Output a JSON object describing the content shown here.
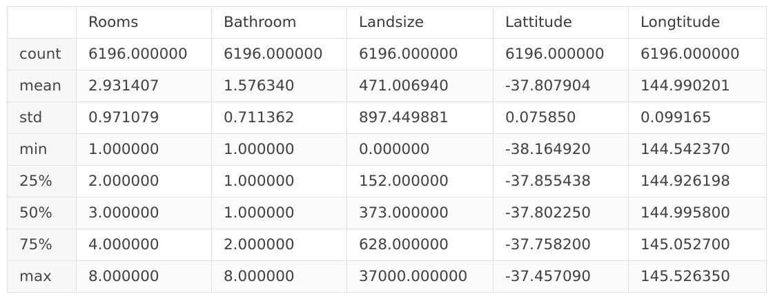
{
  "table": {
    "index_header": "",
    "columns": [
      "Rooms",
      "Bathroom",
      "Landsize",
      "Lattitude",
      "Longtitude"
    ],
    "rows": [
      {
        "label": "count",
        "values": [
          "6196.000000",
          "6196.000000",
          "6196.000000",
          "6196.000000",
          "6196.000000"
        ]
      },
      {
        "label": "mean",
        "values": [
          "2.931407",
          "1.576340",
          "471.006940",
          "-37.807904",
          "144.990201"
        ]
      },
      {
        "label": "std",
        "values": [
          "0.971079",
          "0.711362",
          "897.449881",
          "0.075850",
          "0.099165"
        ]
      },
      {
        "label": "min",
        "values": [
          "1.000000",
          "1.000000",
          "0.000000",
          "-38.164920",
          "144.542370"
        ]
      },
      {
        "label": "25%",
        "values": [
          "2.000000",
          "1.000000",
          "152.000000",
          "-37.855438",
          "144.926198"
        ]
      },
      {
        "label": "50%",
        "values": [
          "3.000000",
          "1.000000",
          "373.000000",
          "-37.802250",
          "144.995800"
        ]
      },
      {
        "label": "75%",
        "values": [
          "4.000000",
          "2.000000",
          "628.000000",
          "-37.758200",
          "145.052700"
        ]
      },
      {
        "label": "max",
        "values": [
          "8.000000",
          "8.000000",
          "37000.000000",
          "-37.457090",
          "145.526350"
        ]
      }
    ]
  },
  "colors": {
    "border": "#e1e1e1",
    "index_background": "#f7f7f7",
    "text": "#3f3f3f"
  }
}
